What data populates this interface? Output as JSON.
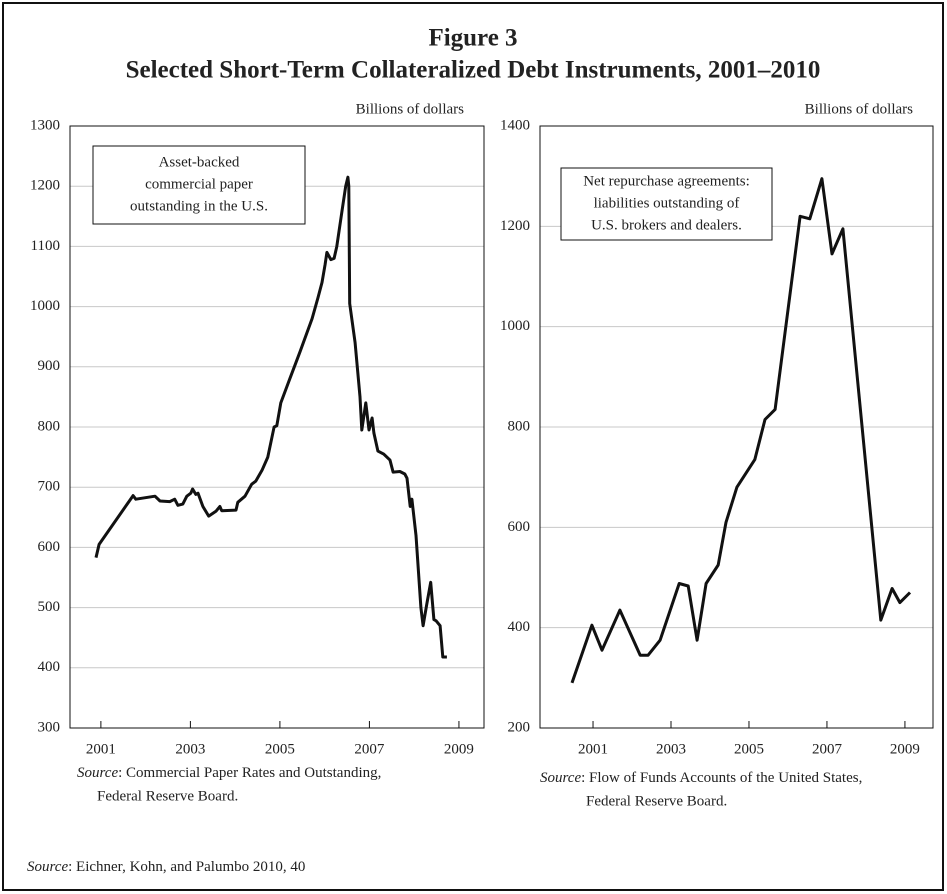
{
  "header": {
    "title": "Figure 3",
    "subtitle": "Selected Short-Term Collateralized Debt Instruments, 2001–2010"
  },
  "footer_source": {
    "italic": "Source",
    "rest": ": Eichner, Kohn, and Palumbo 2010, 40"
  },
  "chart_data": [
    {
      "type": "line",
      "y_label": "Billions of dollars",
      "annotation": [
        "Asset-backed",
        "commercial paper",
        "outstanding in the U.S."
      ],
      "color": "#111111",
      "grid": true,
      "xlim": [
        2000.31,
        2009.56
      ],
      "ylim": [
        300,
        1300
      ],
      "xticks": [
        2001,
        2003,
        2005,
        2007,
        2009
      ],
      "yticks": [
        300,
        400,
        500,
        600,
        700,
        800,
        900,
        1000,
        1100,
        1200,
        1300
      ],
      "x": [
        2000.89,
        2000.96,
        2001.72,
        2001.78,
        2002.21,
        2002.32,
        2002.54,
        2002.65,
        2002.72,
        2002.83,
        2002.92,
        2003.01,
        2003.05,
        2003.12,
        2003.17,
        2003.28,
        2003.41,
        2003.57,
        2003.66,
        2003.7,
        2004.02,
        2004.06,
        2004.22,
        2004.37,
        2004.46,
        2004.6,
        2004.73,
        2004.87,
        2004.93,
        2005.02,
        2005.22,
        2005.45,
        2005.72,
        2005.85,
        2005.94,
        2006.01,
        2006.05,
        2006.14,
        2006.21,
        2006.27,
        2006.39,
        2006.47,
        2006.52,
        2006.54,
        2006.56,
        2006.68,
        2006.79,
        2006.83,
        2006.92,
        2006.99,
        2007.06,
        2007.1,
        2007.19,
        2007.32,
        2007.46,
        2007.53,
        2007.68,
        2007.79,
        2007.84,
        2007.91,
        2007.95,
        2008.04,
        2008.15,
        2008.2,
        2008.28,
        2008.37,
        2008.44,
        2008.49,
        2008.58,
        2008.64,
        2008.73
      ],
      "values": [
        583,
        605,
        686,
        680,
        685,
        677,
        676,
        680,
        670,
        672,
        685,
        690,
        697,
        688,
        690,
        668,
        652,
        660,
        668,
        661,
        662,
        675,
        685,
        705,
        710,
        728,
        750,
        800,
        802,
        840,
        880,
        925,
        980,
        1015,
        1040,
        1070,
        1090,
        1078,
        1080,
        1100,
        1160,
        1200,
        1215,
        1200,
        1005,
        940,
        850,
        795,
        840,
        795,
        815,
        790,
        760,
        755,
        745,
        725,
        726,
        722,
        715,
        668,
        680,
        620,
        500,
        470,
        505,
        542,
        480,
        478,
        470,
        418,
        418
      ],
      "source": {
        "italic": "Source",
        "rest": ": Commercial Paper Rates and Outstanding,",
        "line2": "Federal Reserve Board."
      }
    },
    {
      "type": "line",
      "y_label": "Billions of dollars",
      "annotation": [
        "Net repurchase agreements:",
        "liabilities outstanding of",
        "U.S. brokers and dealers."
      ],
      "color": "#111111",
      "grid": true,
      "xlim": [
        1999.64,
        2009.72
      ],
      "ylim": [
        200,
        1400
      ],
      "xticks": [
        2001,
        2003,
        2005,
        2007,
        2009
      ],
      "yticks": [
        200,
        400,
        600,
        800,
        1000,
        1200,
        1400
      ],
      "x": [
        2000.46,
        2000.97,
        2001.23,
        2001.69,
        2002.21,
        2002.41,
        2002.72,
        2003.21,
        2003.44,
        2003.67,
        2003.9,
        2004.21,
        2004.41,
        2004.69,
        2005.15,
        2005.41,
        2005.67,
        2006.31,
        2006.56,
        2006.87,
        2007.13,
        2007.41,
        2008.38,
        2008.67,
        2008.87,
        2009.13
      ],
      "values": [
        290,
        405,
        355,
        435,
        345,
        345,
        375,
        488,
        483,
        375,
        488,
        525,
        610,
        680,
        735,
        815,
        835,
        1220,
        1215,
        1295,
        1145,
        1195,
        415,
        478,
        450,
        470
      ],
      "source": {
        "italic": "Source",
        "rest": ": Flow of Funds Accounts of the United States,",
        "line2": "Federal Reserve Board."
      }
    }
  ]
}
